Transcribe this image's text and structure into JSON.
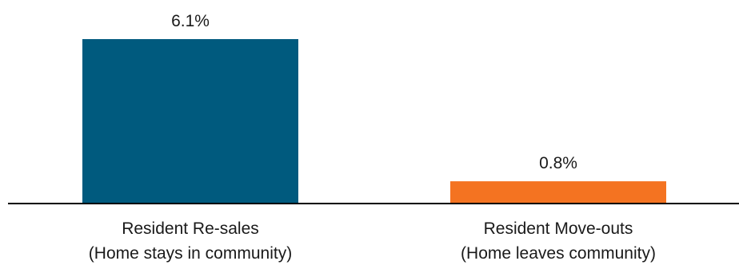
{
  "chart_data": {
    "type": "bar",
    "categories": [
      [
        "Resident Re-sales",
        "(Home stays in community)"
      ],
      [
        "Resident Move-outs",
        "(Home leaves community)"
      ]
    ],
    "values": [
      6.1,
      0.8
    ],
    "data_labels": [
      "6.1%",
      "0.8%"
    ],
    "colors": [
      "#005A7E",
      "#F47321"
    ],
    "ylim": [
      0,
      7
    ],
    "grid": false,
    "legend": "none",
    "title": "",
    "xlabel": "",
    "ylabel": ""
  }
}
